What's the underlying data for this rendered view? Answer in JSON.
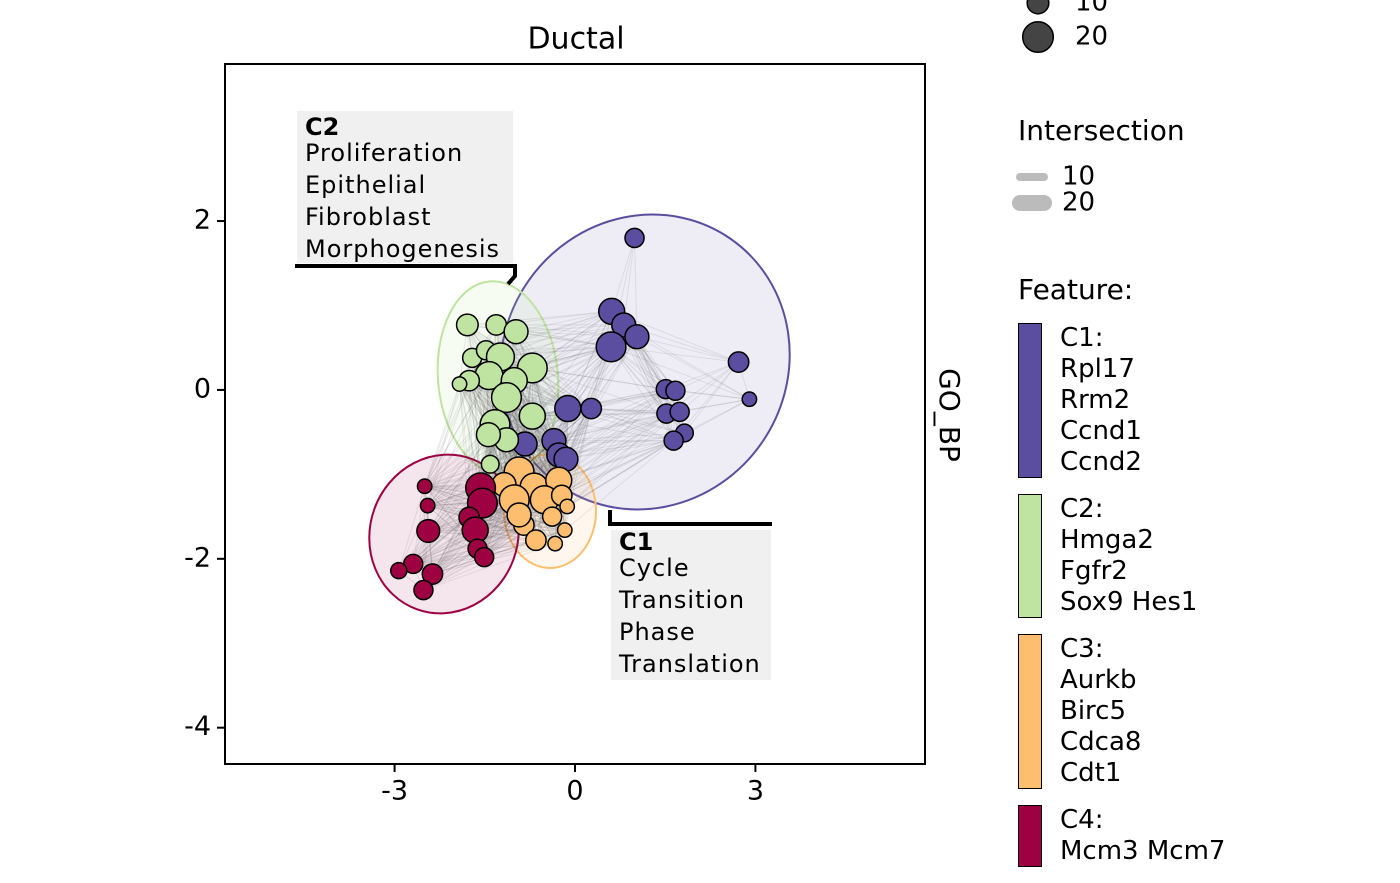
{
  "chart_data": {
    "type": "scatter",
    "title": "Ductal",
    "strip_label": "GO_BP",
    "xlim": [
      -5.82,
      5.82
    ],
    "ylim": [
      -4.43,
      3.86
    ],
    "xticks": [
      -3,
      0,
      3
    ],
    "yticks": [
      -4,
      -2,
      0,
      2
    ],
    "size_legend": {
      "values": [
        10,
        20
      ]
    },
    "intersection_legend": {
      "title": "Intersection",
      "values": [
        10,
        20
      ]
    },
    "legend_title": "Feature:",
    "annotations": [
      {
        "label": "C2",
        "lines": [
          "Proliferation",
          "Epithelial",
          "Fibroblast",
          "Morphogenesis"
        ]
      },
      {
        "label": "C1",
        "lines": [
          "Cycle",
          "Transition",
          "Phase",
          "Translation"
        ]
      }
    ],
    "series": [
      {
        "name": "C1:\nRpl17\nRrm2\nCcnd1\nCcnd2",
        "color": "#5b4ea0",
        "x": [
          0.99,
          0.61,
          0.81,
          1.03,
          0.6,
          2.72,
          2.9,
          1.51,
          1.67,
          1.52,
          1.74,
          1.82,
          1.64,
          -0.12,
          0.27,
          -0.83,
          -0.35,
          -0.27,
          -0.15
        ],
        "y": [
          1.8,
          0.93,
          0.77,
          0.63,
          0.51,
          0.33,
          -0.11,
          0.01,
          -0.01,
          -0.28,
          -0.26,
          -0.51,
          -0.6,
          -0.22,
          -0.22,
          -0.64,
          -0.6,
          -0.77,
          -0.82
        ],
        "sizes": [
          7,
          13,
          11,
          11,
          17,
          8,
          4,
          7,
          7,
          7,
          7,
          6,
          7,
          13,
          8,
          11,
          11,
          11,
          11
        ]
      },
      {
        "name": "C2:\nHmga2\nFgfr2\nSox9 Hes1",
        "color": "#bfe3a0",
        "x": [
          -1.79,
          -1.31,
          -0.98,
          -1.71,
          -1.48,
          -1.24,
          -0.71,
          -1.43,
          -1.76,
          -1.92,
          -1.01,
          -1.14,
          -0.71,
          -1.33,
          -1.14,
          -1.44,
          -1.41
        ],
        "y": [
          0.77,
          0.77,
          0.69,
          0.38,
          0.47,
          0.39,
          0.26,
          0.17,
          0.11,
          0.07,
          0.11,
          -0.09,
          -0.31,
          -0.41,
          -0.59,
          -0.53,
          -0.88
        ],
        "sizes": [
          9,
          8,
          11,
          7,
          7,
          15,
          17,
          15,
          8,
          4,
          13,
          17,
          13,
          17,
          11,
          11,
          6
        ]
      },
      {
        "name": "C3:\nAurkb\nBirc5\nCdca8\nCdt1",
        "color": "#fdbf6f",
        "x": [
          -0.93,
          -1.18,
          -0.68,
          -0.27,
          -1.01,
          -0.51,
          -0.22,
          -0.85,
          -0.38,
          -0.13,
          -0.65,
          -0.33,
          -0.17,
          -0.93
        ],
        "y": [
          -0.97,
          -1.12,
          -1.15,
          -1.07,
          -1.3,
          -1.3,
          -1.25,
          -1.6,
          -1.5,
          -1.38,
          -1.78,
          -1.82,
          -1.66,
          -1.48
        ],
        "sizes": [
          17,
          11,
          15,
          13,
          17,
          15,
          8,
          8,
          7,
          4,
          8,
          4,
          4,
          11
        ]
      },
      {
        "name": "C4:\nMcm3 Mcm7",
        "color": "#9e0142",
        "x": [
          -2.5,
          -2.45,
          -1.57,
          -1.54,
          -1.76,
          -1.66,
          -2.44,
          -1.62,
          -1.51,
          -2.69,
          -2.37,
          -2.93,
          -2.52
        ],
        "y": [
          -1.14,
          -1.37,
          -1.16,
          -1.34,
          -1.51,
          -1.66,
          -1.67,
          -1.88,
          -1.98,
          -2.06,
          -2.18,
          -2.14,
          -2.37
        ],
        "sizes": [
          4,
          4,
          17,
          17,
          8,
          13,
          10,
          7,
          7,
          7,
          8,
          5,
          7
        ]
      }
    ]
  }
}
